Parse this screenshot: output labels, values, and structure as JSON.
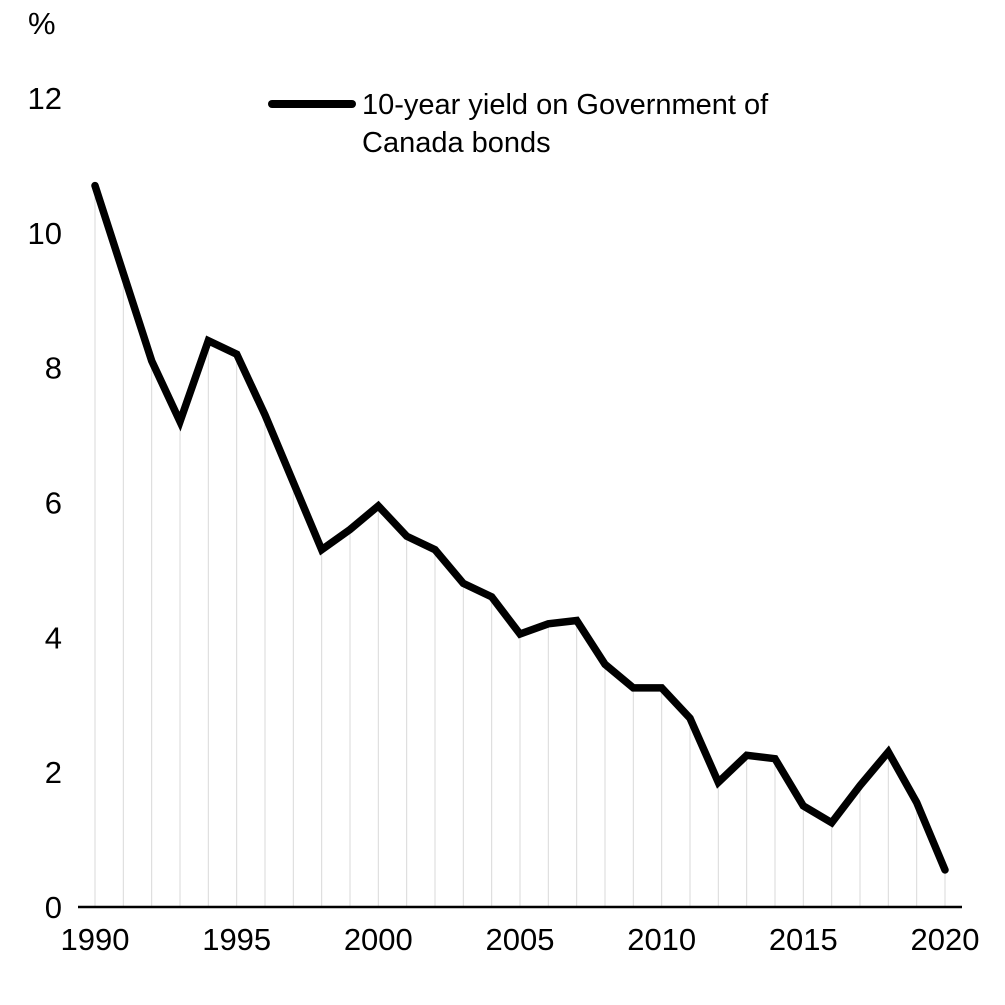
{
  "chart_data": {
    "type": "line",
    "title": "",
    "ylabel": "%",
    "xlabel": "",
    "legend_label": "10-year yield on Government of Canada bonds",
    "legend_position": "top-center",
    "grid": "vertical droplines from each data point to baseline",
    "line_color": "#000000",
    "dropline_color": "#d9d9d9",
    "ylim": [
      0,
      12
    ],
    "yticks": [
      0,
      2,
      4,
      6,
      8,
      10,
      12
    ],
    "xticks": [
      1990,
      1995,
      2000,
      2005,
      2010,
      2015,
      2020
    ],
    "x": [
      1990,
      1991,
      1992,
      1993,
      1994,
      1995,
      1996,
      1997,
      1998,
      1999,
      2000,
      2001,
      2002,
      2003,
      2004,
      2005,
      2006,
      2007,
      2008,
      2009,
      2010,
      2011,
      2012,
      2013,
      2014,
      2015,
      2016,
      2017,
      2018,
      2019,
      2020
    ],
    "series": [
      {
        "name": "10-year yield on Government of Canada bonds",
        "values": [
          10.7,
          9.4,
          8.1,
          7.2,
          8.4,
          8.2,
          7.3,
          6.3,
          5.3,
          5.6,
          5.95,
          5.5,
          5.3,
          4.8,
          4.6,
          4.05,
          4.2,
          4.25,
          3.6,
          3.25,
          3.25,
          2.8,
          1.85,
          2.25,
          2.2,
          1.5,
          1.25,
          1.8,
          2.3,
          1.55,
          0.55
        ]
      }
    ]
  }
}
